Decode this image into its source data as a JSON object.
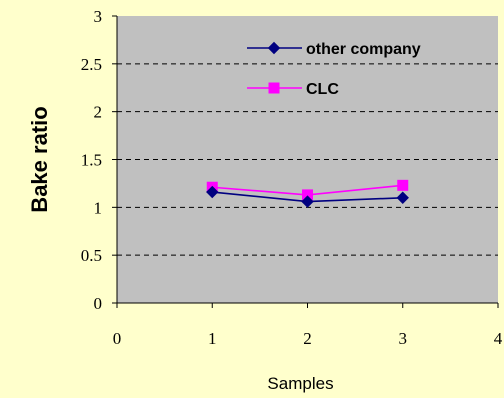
{
  "chart_data": {
    "type": "line",
    "xlabel": "Samples",
    "ylabel": "Bake ratio",
    "xlim": [
      0,
      4
    ],
    "ylim": [
      0,
      3
    ],
    "x_ticks": [
      "0",
      "1",
      "2",
      "3",
      "4"
    ],
    "y_ticks": [
      "0",
      "0.5",
      "1",
      "1.5",
      "2",
      "2.5",
      "3"
    ],
    "grid": "horizontal dashed",
    "legend_position": "top-right",
    "series": [
      {
        "name": "other company",
        "color": "#000080",
        "marker": "diamond",
        "x": [
          1,
          2,
          3
        ],
        "values": [
          1.16,
          1.06,
          1.1
        ]
      },
      {
        "name": "CLC",
        "color": "#ff00ff",
        "marker": "square",
        "x": [
          1,
          2,
          3
        ],
        "values": [
          1.21,
          1.13,
          1.23
        ]
      }
    ],
    "plot_background": "#c0c0c0",
    "page_background": "#ffffcc"
  }
}
